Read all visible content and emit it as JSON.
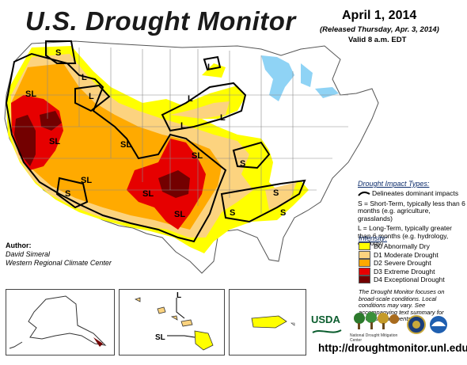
{
  "header": {
    "title": "U.S. Drought Monitor",
    "date": "April 1, 2014",
    "released": "(Released Thursday, Apr. 3, 2014)",
    "valid": "Valid 8 a.m. EDT"
  },
  "author": {
    "heading": "Author:",
    "name": "David Simeral",
    "org": "Western Regional Climate Center"
  },
  "impact_legend": {
    "heading": "Drought Impact Types:",
    "delineates": "Delineates dominant impacts",
    "short_term": "S = Short-Term, typically less than 6 months (e.g. agriculture, grasslands)",
    "long_term": "L = Long-Term, typically greater than 6 months (e.g. hydrology, ecology)"
  },
  "intensity_legend": {
    "heading": "Intensity:",
    "items": [
      {
        "label": "D0 Abnormally Dry",
        "color": "#ffff00"
      },
      {
        "label": "D1 Moderate Drought",
        "color": "#fcd37f"
      },
      {
        "label": "D2 Severe Drought",
        "color": "#ffaa00"
      },
      {
        "label": "D3 Extreme Drought",
        "color": "#e60000"
      },
      {
        "label": "D4 Exceptional Drought",
        "color": "#730000"
      }
    ]
  },
  "note": "The Drought Monitor focuses on broad-scale conditions. Local conditions may vary. See accompanying text summary for forecast statements.",
  "url": "http://droughtmonitor.unl.edu/",
  "logos": {
    "usda": "USDA",
    "ndmc": "National Drought Mitigation Center"
  },
  "map_labels": {
    "S": "S",
    "L": "L",
    "SL": "SL"
  },
  "colors": {
    "water": "#8fd3f5",
    "state_border": "#8a8a8a",
    "impact_line": "#000000"
  }
}
